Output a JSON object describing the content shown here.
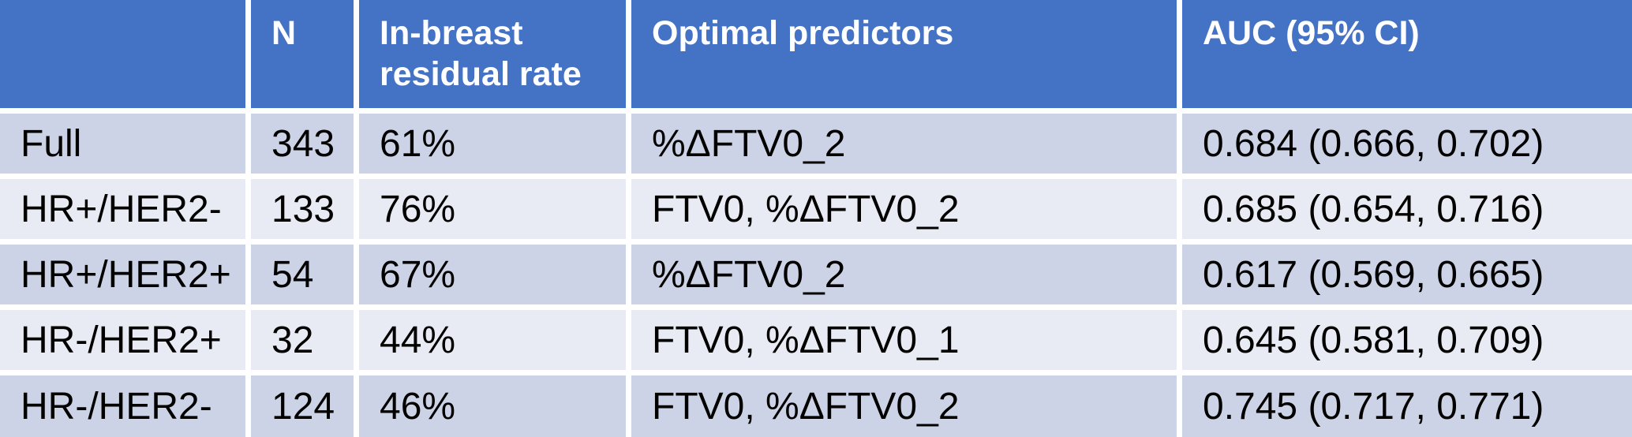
{
  "table": {
    "description": "Results table of in-breast residual rates and AUC of optimal FTV predictors by breast cancer subtype",
    "columns": [
      {
        "label": ""
      },
      {
        "label": "N"
      },
      {
        "label": "In-breast residual rate"
      },
      {
        "label": "Optimal predictors"
      },
      {
        "label": "AUC (95% CI)"
      }
    ],
    "rows": [
      {
        "subtype": "Full",
        "n": "343",
        "residual_rate": "61%",
        "predictors": "%ΔFTV0_2",
        "auc": "0.684 (0.666, 0.702)"
      },
      {
        "subtype": "HR+/HER2-",
        "n": "133",
        "residual_rate": "76%",
        "predictors": "FTV0, %ΔFTV0_2",
        "auc": "0.685 (0.654, 0.716)"
      },
      {
        "subtype": "HR+/HER2+",
        "n": "54",
        "residual_rate": "67%",
        "predictors": "%ΔFTV0_2",
        "auc": "0.617 (0.569, 0.665)"
      },
      {
        "subtype": "HR-/HER2+",
        "n": "32",
        "residual_rate": "44%",
        "predictors": "FTV0, %ΔFTV0_1",
        "auc": "0.645 (0.581, 0.709)"
      },
      {
        "subtype": "HR-/HER2-",
        "n": "124",
        "residual_rate": "46%",
        "predictors": "FTV0, %ΔFTV0_2",
        "auc": "0.745 (0.717, 0.771)"
      }
    ],
    "colors": {
      "header_bg": "#4472C4",
      "header_text": "#FFFFFF",
      "band_dark": "#CDD3E6",
      "band_light": "#E9EBF4",
      "divider": "#FFFFFF",
      "body_text": "#000000"
    }
  }
}
